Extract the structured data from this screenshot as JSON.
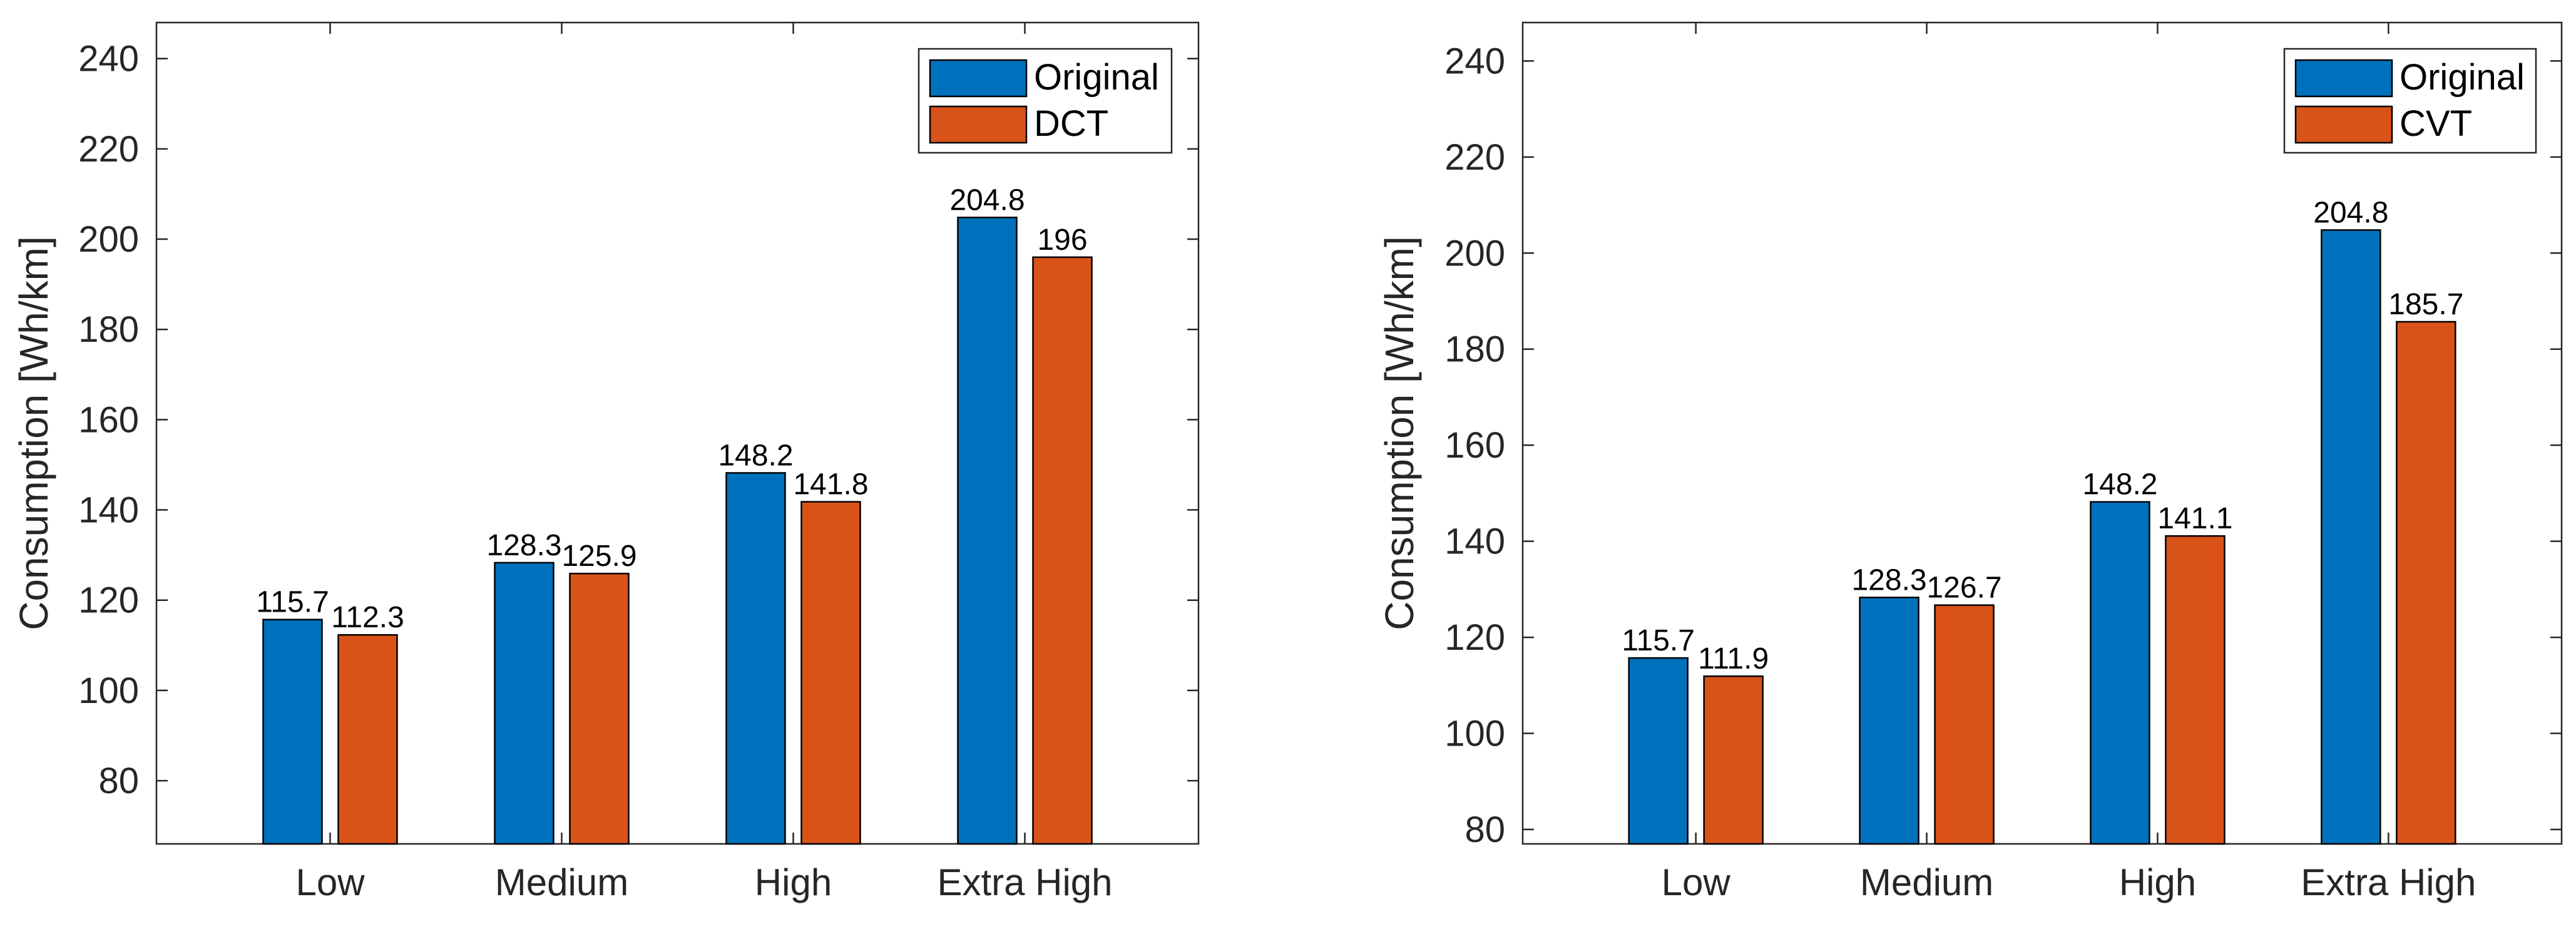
{
  "colors": {
    "original": "#0072BD",
    "variant": "#D95319",
    "axis": "#262626",
    "text": "#262626"
  },
  "chart_data": [
    {
      "type": "bar",
      "categories": [
        "Low",
        "Medium",
        "High",
        "Extra High"
      ],
      "series": [
        {
          "name": "Original",
          "values": [
            115.7,
            128.3,
            148.2,
            204.8
          ],
          "labels": [
            "115.7",
            "128.3",
            "148.2",
            "204.8"
          ],
          "color": "#0072BD"
        },
        {
          "name": "DCT",
          "values": [
            112.3,
            125.9,
            141.8,
            196
          ],
          "labels": [
            "112.3",
            "125.9",
            "141.8",
            "196"
          ],
          "color": "#D95319"
        }
      ],
      "title": "",
      "xlabel": "",
      "ylabel": "Consumption [Wh/km]",
      "ylim": [
        66,
        248
      ],
      "yticks": [
        80,
        100,
        120,
        140,
        160,
        180,
        200,
        220,
        240
      ],
      "grid": false,
      "legend_position": "top-right"
    },
    {
      "type": "bar",
      "categories": [
        "Low",
        "Medium",
        "High",
        "Extra High"
      ],
      "series": [
        {
          "name": "Original",
          "values": [
            115.7,
            128.3,
            148.2,
            204.8
          ],
          "labels": [
            "115.7",
            "128.3",
            "148.2",
            "204.8"
          ],
          "color": "#0072BD"
        },
        {
          "name": "CVT",
          "values": [
            111.9,
            126.7,
            141.1,
            185.7
          ],
          "labels": [
            "111.9",
            "126.7",
            "141.1",
            "185.7"
          ],
          "color": "#D95319"
        }
      ],
      "title": "",
      "xlabel": "",
      "ylabel": "Consumption [Wh/km]",
      "ylim": [
        77,
        248
      ],
      "yticks": [
        80,
        100,
        120,
        140,
        160,
        180,
        200,
        220,
        240
      ],
      "grid": false,
      "legend_position": "top-right"
    }
  ]
}
